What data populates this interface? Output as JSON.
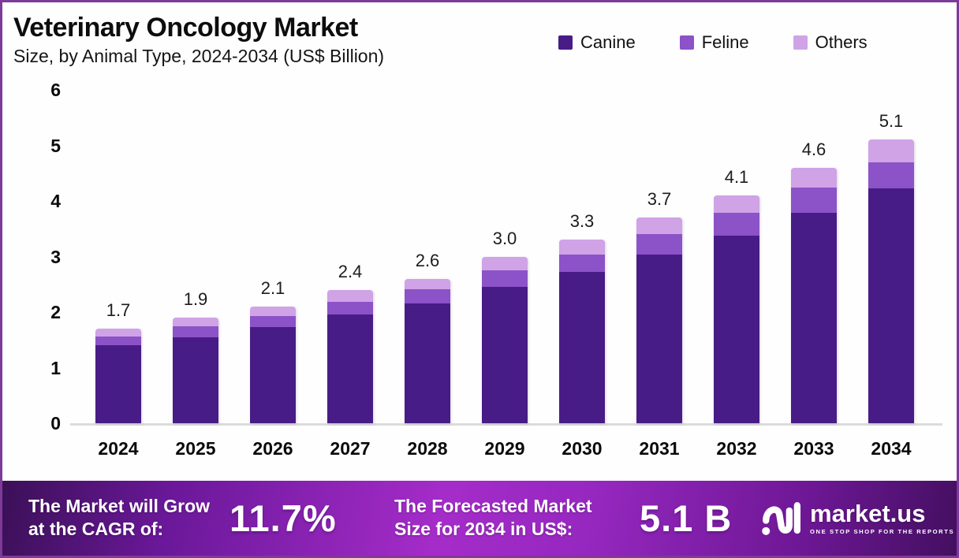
{
  "header": {
    "title": "Veterinary Oncology Market",
    "subtitle": "Size, by Animal Type, 2024-2034 (US$ Billion)"
  },
  "legend": [
    {
      "label": "Canine",
      "color": "#481c86"
    },
    {
      "label": "Feline",
      "color": "#8c52c8"
    },
    {
      "label": "Others",
      "color": "#cfa3e6"
    }
  ],
  "chart_data": {
    "type": "bar",
    "stacked": true,
    "title": "Veterinary Oncology Market Size, by Animal Type, 2024-2034 (US$ Billion)",
    "categories": [
      "2024",
      "2025",
      "2026",
      "2027",
      "2028",
      "2029",
      "2030",
      "2031",
      "2032",
      "2033",
      "2034"
    ],
    "series": [
      {
        "name": "Canine",
        "color": "#481c86",
        "values": [
          1.4,
          1.55,
          1.73,
          1.96,
          2.15,
          2.45,
          2.72,
          3.03,
          3.37,
          3.78,
          4.22
        ]
      },
      {
        "name": "Feline",
        "color": "#8c52c8",
        "values": [
          0.16,
          0.2,
          0.2,
          0.22,
          0.26,
          0.3,
          0.31,
          0.37,
          0.42,
          0.46,
          0.48
        ]
      },
      {
        "name": "Others",
        "color": "#cfa3e6",
        "values": [
          0.14,
          0.15,
          0.17,
          0.22,
          0.19,
          0.25,
          0.27,
          0.3,
          0.31,
          0.36,
          0.4
        ]
      }
    ],
    "totals": [
      "1.7",
      "1.9",
      "2.1",
      "2.4",
      "2.6",
      "3.0",
      "3.3",
      "3.7",
      "4.1",
      "4.6",
      "5.1"
    ],
    "xlabel": "",
    "ylabel": "",
    "ylim": [
      0,
      6
    ],
    "yticks": [
      0,
      1,
      2,
      3,
      4,
      5,
      6
    ],
    "grid": false,
    "legend_position": "top-right"
  },
  "footer": {
    "cagr_line1": "The Market will Grow",
    "cagr_line2": "at the CAGR of:",
    "cagr_value": "11.7%",
    "forecast_line1": "The Forecasted Market",
    "forecast_line2": "Size for 2034 in US$:",
    "forecast_value": "5.1 B",
    "brand": "market.us",
    "brand_tagline": "ONE STOP SHOP FOR THE REPORTS"
  },
  "colors": {
    "border": "#7d3a99",
    "banner_center": "#a52cc9",
    "banner_edge": "#3b1057",
    "baseline": "#dcdcdc"
  }
}
